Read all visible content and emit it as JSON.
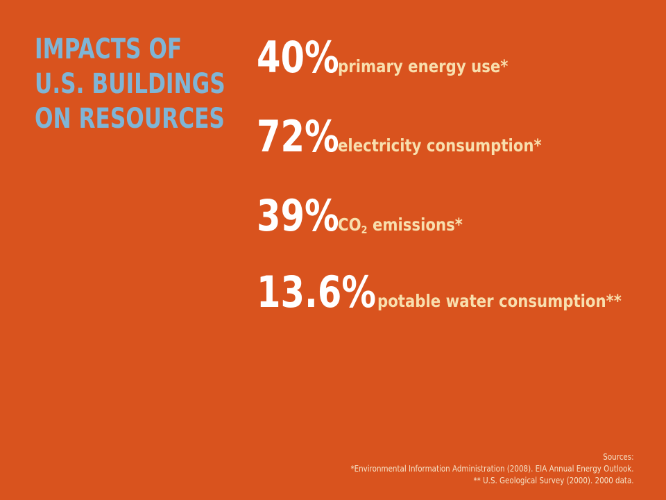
{
  "slide": {
    "title_lines": [
      "IMPACTS OF",
      "U.S. BUILDINGS",
      "ON RESOURCES"
    ],
    "stats": [
      {
        "value": "40%",
        "label": "primary energy use*"
      },
      {
        "value": "72%",
        "label": "electricity consumption*"
      },
      {
        "value": "39%",
        "label_prefix": "CO",
        "label_subscript": "2",
        "label_suffix": " emissions*"
      },
      {
        "value": "13.6%",
        "label": "potable water consumption**"
      }
    ],
    "sources": {
      "heading": "Sources:",
      "lines": [
        "*Environmental Information Administration (2008). EIA Annual Energy Outlook.",
        "** U.S. Geological Survey (2000). 2000 data."
      ]
    },
    "colors": {
      "background": "#d9531e",
      "title": "#7fb5d6",
      "value": "#ffffff",
      "label": "#f8dfae"
    }
  }
}
